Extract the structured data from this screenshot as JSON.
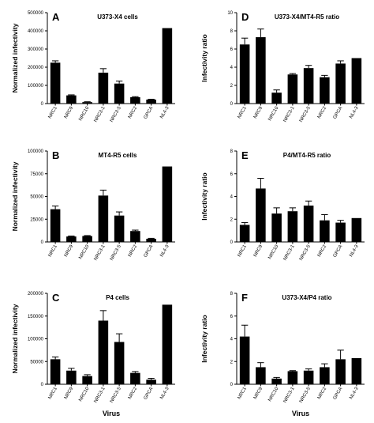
{
  "figure": {
    "x_axis_label": "Virus",
    "bar_color": "#000000"
  },
  "chart_data": [
    {
      "letter": "A",
      "type": "bar",
      "title": "U373-X4 cells",
      "ylabel": "Normalized infectivity",
      "categories": [
        "NRC1",
        "NRC9",
        "NRC10",
        "NRC3-1",
        "NRC3-5",
        "NRC2",
        "GPCA",
        "NL4-3"
      ],
      "values": [
        225000,
        45000,
        8000,
        170000,
        110000,
        35000,
        22000,
        415000
      ],
      "errors": [
        10000,
        3000,
        2000,
        22000,
        14000,
        3000,
        2000,
        0
      ],
      "ylim": [
        0,
        500000
      ],
      "yticks": [
        0,
        100000,
        200000,
        300000,
        400000,
        500000
      ],
      "ytick_labels": [
        "0",
        "100000",
        "200000",
        "300000",
        "400000",
        "500000"
      ],
      "show_xlabel": false
    },
    {
      "letter": "B",
      "type": "bar",
      "title": "MT4-R5 cells",
      "ylabel": "Normalized infectivity",
      "categories": [
        "NRC1",
        "NRC9",
        "NRC10",
        "NRC3-1",
        "NRC3-5",
        "NRC2",
        "GPCA",
        "NL4-3"
      ],
      "values": [
        36000,
        6000,
        6500,
        51000,
        29000,
        12000,
        3500,
        83000
      ],
      "errors": [
        3500,
        500,
        500,
        6000,
        4000,
        1000,
        500,
        0
      ],
      "ylim": [
        0,
        100000
      ],
      "yticks": [
        0,
        25000,
        50000,
        75000,
        100000
      ],
      "ytick_labels": [
        "0",
        "25000",
        "50000",
        "75000",
        "100000"
      ],
      "show_xlabel": false
    },
    {
      "letter": "C",
      "type": "bar",
      "title": "P4 cells",
      "ylabel": "Normalized infectivity",
      "categories": [
        "NRC1",
        "NRC9",
        "NRC10",
        "NRC3-1",
        "NRC3-5",
        "NRC2",
        "GPCA",
        "NL4-3"
      ],
      "values": [
        55000,
        30000,
        18000,
        140000,
        93000,
        25000,
        10000,
        175000
      ],
      "errors": [
        5000,
        5000,
        3000,
        22000,
        18000,
        3000,
        3000,
        0
      ],
      "ylim": [
        0,
        200000
      ],
      "yticks": [
        0,
        50000,
        100000,
        150000,
        200000
      ],
      "ytick_labels": [
        "0",
        "50000",
        "100000",
        "150000",
        "200000"
      ],
      "show_xlabel": true
    },
    {
      "letter": "D",
      "type": "bar",
      "title": "U373-X4/MT4-R5 ratio",
      "ylabel": "Infectivity ratio",
      "categories": [
        "NRC1",
        "NRC9",
        "NRC10",
        "NRC3-1",
        "NRC3-5",
        "NRC2",
        "GPCA",
        "NL4-3"
      ],
      "values": [
        6.5,
        7.3,
        1.2,
        3.2,
        3.9,
        2.9,
        4.4,
        5.0
      ],
      "errors": [
        0.7,
        0.9,
        0.3,
        0.1,
        0.3,
        0.2,
        0.3,
        0
      ],
      "ylim": [
        0,
        10
      ],
      "yticks": [
        0,
        2,
        4,
        6,
        8,
        10
      ],
      "ytick_labels": [
        "0",
        "2",
        "4",
        "6",
        "8",
        "10"
      ],
      "show_xlabel": false
    },
    {
      "letter": "E",
      "type": "bar",
      "title": "P4/MT4-R5 ratio",
      "ylabel": "Infectivity ratio",
      "categories": [
        "NRC1",
        "NRC9",
        "NRC10",
        "NRC3-1",
        "NRC3-5",
        "NRC2",
        "GPCA",
        "NL4-3"
      ],
      "values": [
        1.5,
        4.7,
        2.5,
        2.7,
        3.2,
        1.9,
        1.7,
        2.1
      ],
      "errors": [
        0.2,
        0.9,
        0.5,
        0.3,
        0.4,
        0.5,
        0.2,
        0
      ],
      "ylim": [
        0,
        8
      ],
      "yticks": [
        0,
        2,
        4,
        6,
        8
      ],
      "ytick_labels": [
        "0",
        "2",
        "4",
        "6",
        "8"
      ],
      "show_xlabel": false
    },
    {
      "letter": "F",
      "type": "bar",
      "title": "U373-X4/P4 ratio",
      "ylabel": "Infectivity ratio",
      "categories": [
        "NRC1",
        "NRC9",
        "NRC10",
        "NRC3-1",
        "NRC3-5",
        "NRC2",
        "GPCA",
        "NL4-3"
      ],
      "values": [
        4.2,
        1.5,
        0.5,
        1.15,
        1.2,
        1.5,
        2.2,
        2.3
      ],
      "errors": [
        1.0,
        0.4,
        0.1,
        0.05,
        0.15,
        0.3,
        0.8,
        0
      ],
      "ylim": [
        0,
        8
      ],
      "yticks": [
        0,
        2,
        4,
        6,
        8
      ],
      "ytick_labels": [
        "0",
        "2",
        "4",
        "6",
        "8"
      ],
      "show_xlabel": true
    }
  ]
}
